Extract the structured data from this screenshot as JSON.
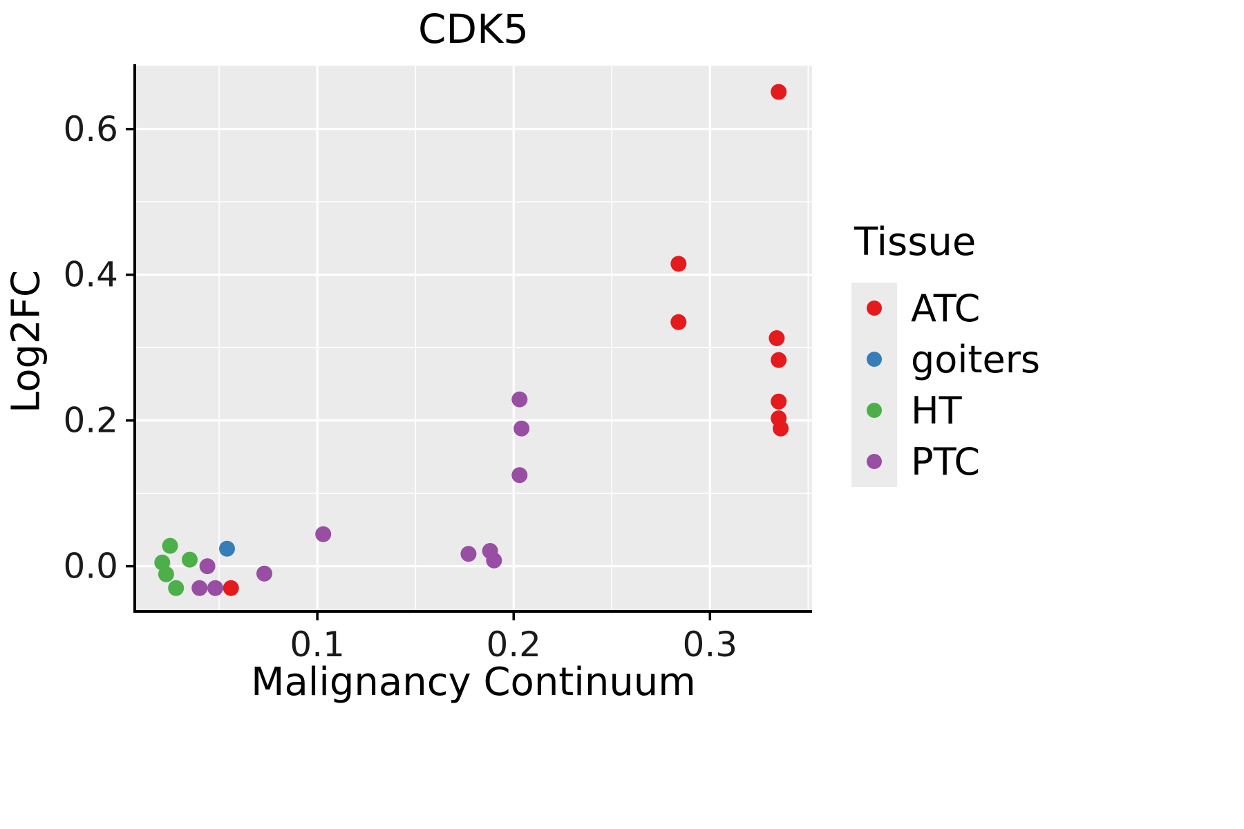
{
  "chart_data": {
    "type": "scatter",
    "title": "CDK5",
    "xlabel": "Malignancy Continuum",
    "ylabel": "Log2FC",
    "xlim": [
      0.007,
      0.352
    ],
    "ylim": [
      -0.062,
      0.687
    ],
    "x_ticks": {
      "major": [
        0.1,
        0.2,
        0.3
      ],
      "minor": [
        0.05,
        0.15,
        0.25,
        0.35
      ],
      "labels": [
        "0.1",
        "0.2",
        "0.3"
      ]
    },
    "y_ticks": {
      "major": [
        0.0,
        0.2,
        0.4,
        0.6
      ],
      "minor": [
        0.1,
        0.3,
        0.5
      ],
      "labels": [
        "0.0",
        "0.2",
        "0.4",
        "0.6"
      ]
    },
    "panel_background": "#EBEBEB",
    "grid_color": "#FFFFFF",
    "legend": {
      "title": "Tissue",
      "position": "right"
    },
    "series": [
      {
        "name": "ATC",
        "color": "#E41A1C",
        "points": [
          [
            0.335,
            0.651
          ],
          [
            0.284,
            0.415
          ],
          [
            0.284,
            0.335
          ],
          [
            0.334,
            0.313
          ],
          [
            0.335,
            0.283
          ],
          [
            0.335,
            0.226
          ],
          [
            0.335,
            0.203
          ],
          [
            0.336,
            0.189
          ],
          [
            0.056,
            -0.03
          ]
        ]
      },
      {
        "name": "goiters",
        "color": "#377EB8",
        "points": [
          [
            0.054,
            0.024
          ]
        ]
      },
      {
        "name": "HT",
        "color": "#4DAF4A",
        "points": [
          [
            0.025,
            0.028
          ],
          [
            0.021,
            0.005
          ],
          [
            0.035,
            0.009
          ],
          [
            0.023,
            -0.011
          ],
          [
            0.028,
            -0.03
          ]
        ]
      },
      {
        "name": "PTC",
        "color": "#984EA3",
        "points": [
          [
            0.044,
            0.0
          ],
          [
            0.04,
            -0.03
          ],
          [
            0.048,
            -0.03
          ],
          [
            0.073,
            -0.01
          ],
          [
            0.103,
            0.044
          ],
          [
            0.203,
            0.229
          ],
          [
            0.204,
            0.189
          ],
          [
            0.203,
            0.125
          ],
          [
            0.177,
            0.017
          ],
          [
            0.188,
            0.021
          ],
          [
            0.19,
            0.008
          ]
        ]
      }
    ]
  }
}
